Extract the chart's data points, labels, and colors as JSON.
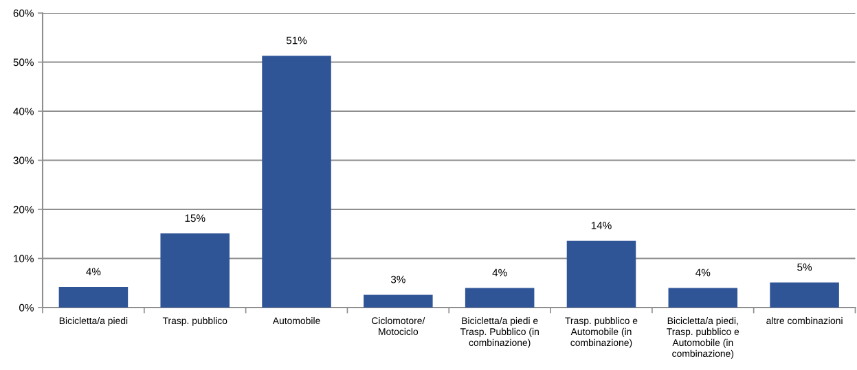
{
  "chart_data": {
    "type": "bar",
    "categories": [
      "Bicicletta/a piedi",
      "Trasp. pubblico",
      "Automobile",
      "Ciclomotore/\nMotociclo",
      "Bicicletta/a piedi e\nTrasp. Pubblico (in\ncombinazione)",
      "Trasp. pubblico e\nAutomobile (in\ncombinazione)",
      "Bicicletta/a piedi,\nTrasp. pubblico e\nAutomobile (in\ncombinazione)",
      "altre combinazioni"
    ],
    "values": [
      4.2,
      15.1,
      51.3,
      2.6,
      4.0,
      13.6,
      4.0,
      5.1
    ],
    "color": "#2f5597",
    "value_labels": [
      "4%",
      "15%",
      "51%",
      "3%",
      "4%",
      "14%",
      "4%",
      "5%"
    ],
    "ylim": [
      0,
      60
    ],
    "yticks": [
      {
        "value": 0,
        "label": "0%"
      },
      {
        "value": 10,
        "label": "10%"
      },
      {
        "value": 20,
        "label": "20%"
      },
      {
        "value": 30,
        "label": "30%"
      },
      {
        "value": 40,
        "label": "40%"
      },
      {
        "value": 50,
        "label": "50%"
      },
      {
        "value": 60,
        "label": "60%"
      }
    ],
    "grid": "y"
  }
}
